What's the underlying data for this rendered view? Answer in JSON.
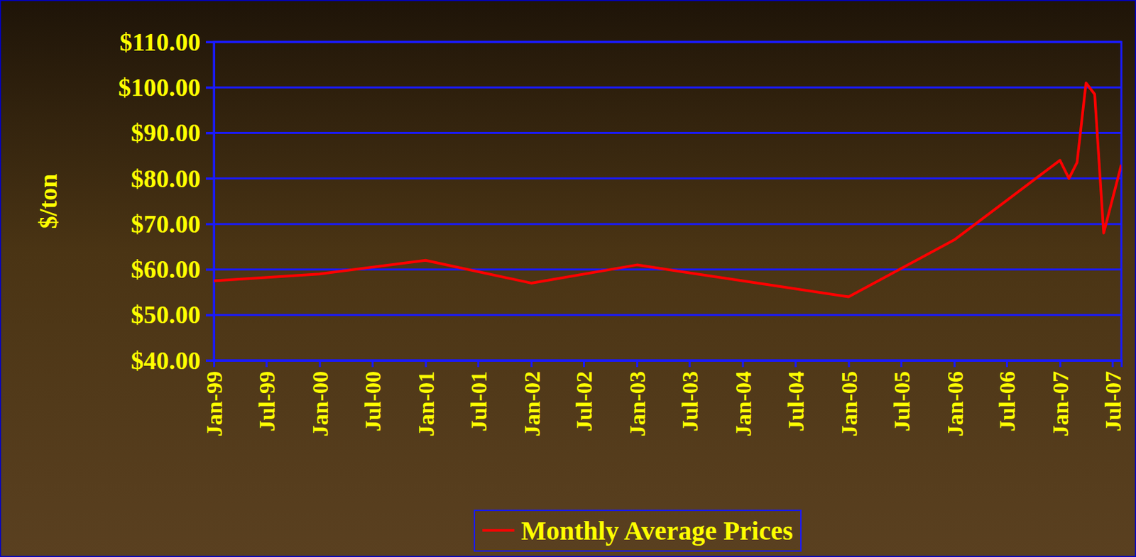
{
  "chart_data": {
    "type": "line",
    "y_label": "$/ton",
    "x": [
      "1999-01",
      "2000-01",
      "2001-01",
      "2002-01",
      "2003-01",
      "2004-01",
      "2005-01",
      "2006-01",
      "2007-01",
      "2007-02",
      "2007-03",
      "2007-04",
      "2007-05",
      "2007-06",
      "2007-08"
    ],
    "series": [
      {
        "name": "Monthly Average Prices",
        "color": "#ff0000",
        "values": [
          57.5,
          59,
          62,
          57,
          61,
          57.5,
          54,
          66.5,
          84,
          80,
          83.5,
          101,
          98.5,
          68,
          83
        ]
      }
    ],
    "xlim": [
      "1999-01",
      "2007-08"
    ],
    "xticks": [
      {
        "value": "1999-01",
        "label": "Jan-99"
      },
      {
        "value": "1999-07",
        "label": "Jul-99"
      },
      {
        "value": "2000-01",
        "label": "Jan-00"
      },
      {
        "value": "2000-07",
        "label": "Jul-00"
      },
      {
        "value": "2001-01",
        "label": "Jan-01"
      },
      {
        "value": "2001-07",
        "label": "Jul-01"
      },
      {
        "value": "2002-01",
        "label": "Jan-02"
      },
      {
        "value": "2002-07",
        "label": "Jul-02"
      },
      {
        "value": "2003-01",
        "label": "Jan-03"
      },
      {
        "value": "2003-07",
        "label": "Jul-03"
      },
      {
        "value": "2004-01",
        "label": "Jan-04"
      },
      {
        "value": "2004-07",
        "label": "Jul-04"
      },
      {
        "value": "2005-01",
        "label": "Jan-05"
      },
      {
        "value": "2005-07",
        "label": "Jul-05"
      },
      {
        "value": "2006-01",
        "label": "Jan-06"
      },
      {
        "value": "2006-07",
        "label": "Jul-06"
      },
      {
        "value": "2007-01",
        "label": "Jan-07"
      },
      {
        "value": "2007-07",
        "label": "Jul-07"
      }
    ],
    "ylim": [
      40,
      110
    ],
    "yticks": [
      {
        "value": 40,
        "label": "$40.00"
      },
      {
        "value": 50,
        "label": "$50.00"
      },
      {
        "value": 60,
        "label": "$60.00"
      },
      {
        "value": 70,
        "label": "$70.00"
      },
      {
        "value": 80,
        "label": "$80.00"
      },
      {
        "value": 90,
        "label": "$90.00"
      },
      {
        "value": 100,
        "label": "$100.00"
      },
      {
        "value": 110,
        "label": "$110.00"
      }
    ],
    "grid": true,
    "legend": "bottom"
  }
}
